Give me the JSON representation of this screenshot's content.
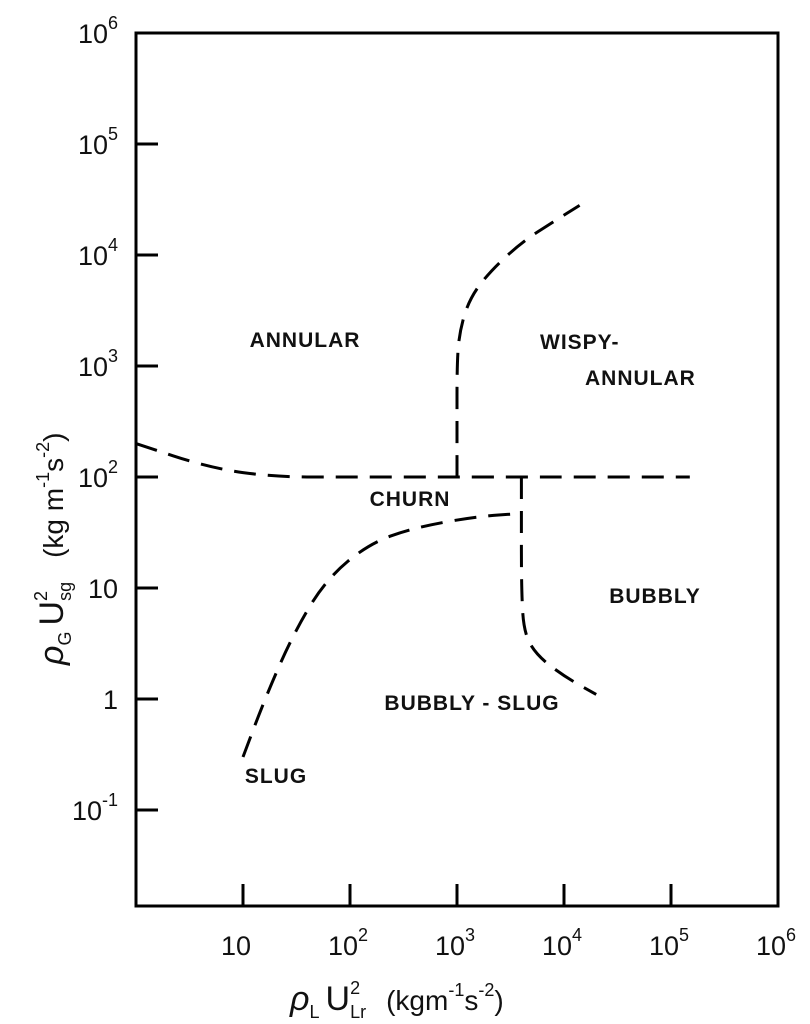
{
  "chart_data": {
    "type": "line",
    "xscale": "log",
    "yscale": "log",
    "xlim": [
      1,
      1000000
    ],
    "ylim": [
      0.01,
      1000000
    ],
    "x_ticks": [
      {
        "base": "10",
        "exp": ""
      },
      {
        "base": "10",
        "exp": "2"
      },
      {
        "base": "10",
        "exp": "3"
      },
      {
        "base": "10",
        "exp": "4"
      },
      {
        "base": "10",
        "exp": "5"
      },
      {
        "base": "10",
        "exp": "6"
      }
    ],
    "y_ticks": [
      {
        "base": "10",
        "exp": "-1"
      },
      {
        "base": "1",
        "exp": ""
      },
      {
        "base": "10",
        "exp": ""
      },
      {
        "base": "10",
        "exp": "2"
      },
      {
        "base": "10",
        "exp": "3"
      },
      {
        "base": "10",
        "exp": "4"
      },
      {
        "base": "10",
        "exp": "5"
      },
      {
        "base": "10",
        "exp": "6"
      }
    ],
    "xlabel": {
      "rho": "ρ",
      "rho_sub": "L",
      "u": "U",
      "u_sup": "2",
      "u_sub": "Lr",
      "units": "(kgm",
      "units_exp1": "-1",
      "units_mid": "s",
      "units_exp2": "-2",
      "units_end": ")"
    },
    "ylabel": {
      "rho": "ρ",
      "rho_sub": "G",
      "u": "U",
      "u_sup": "2",
      "u_sub": "sg",
      "units": "(kg m",
      "units_exp1": "-1",
      "units_mid": "s",
      "units_exp2": "-2",
      "units_end": ")"
    },
    "regions": [
      {
        "name": "ANNULAR",
        "lines": [
          "ANNULAR"
        ]
      },
      {
        "name": "WISPY-ANNULAR",
        "lines": [
          "WISPY-",
          "ANNULAR"
        ]
      },
      {
        "name": "CHURN",
        "lines": [
          "CHURN"
        ]
      },
      {
        "name": "BUBBLY",
        "lines": [
          "BUBBLY"
        ]
      },
      {
        "name": "BUBBLY - SLUG",
        "lines": [
          "BUBBLY - SLUG"
        ]
      },
      {
        "name": "SLUG",
        "lines": [
          "SLUG"
        ]
      }
    ],
    "boundaries": [
      {
        "id": "annular-churn",
        "points": [
          [
            1,
            200
          ],
          [
            5,
            120
          ],
          [
            20,
            100
          ],
          [
            100,
            100
          ],
          [
            1000,
            100
          ],
          [
            4000,
            100
          ],
          [
            10000,
            100
          ],
          [
            150000,
            100
          ]
        ]
      },
      {
        "id": "annular-wispy",
        "points": [
          [
            1000,
            100
          ],
          [
            1000,
            300
          ],
          [
            1000,
            1000
          ],
          [
            1050,
            2000
          ],
          [
            1300,
            4000
          ],
          [
            2000,
            7000
          ],
          [
            4000,
            13000
          ],
          [
            8000,
            20000
          ],
          [
            14000,
            28000
          ]
        ]
      },
      {
        "id": "churn-slug",
        "points": [
          [
            10,
            0.3
          ],
          [
            16,
            1.0
          ],
          [
            30,
            4.0
          ],
          [
            60,
            12
          ],
          [
            150,
            25
          ],
          [
            400,
            35
          ],
          [
            1500,
            44
          ],
          [
            4000,
            47
          ]
        ]
      },
      {
        "id": "churn-bubbly",
        "points": [
          [
            4000,
            100
          ],
          [
            4000,
            47
          ],
          [
            4000,
            10
          ],
          [
            4200,
            4
          ],
          [
            5500,
            2.5
          ],
          [
            10000,
            1.6
          ],
          [
            20000,
            1.1
          ]
        ]
      }
    ]
  }
}
